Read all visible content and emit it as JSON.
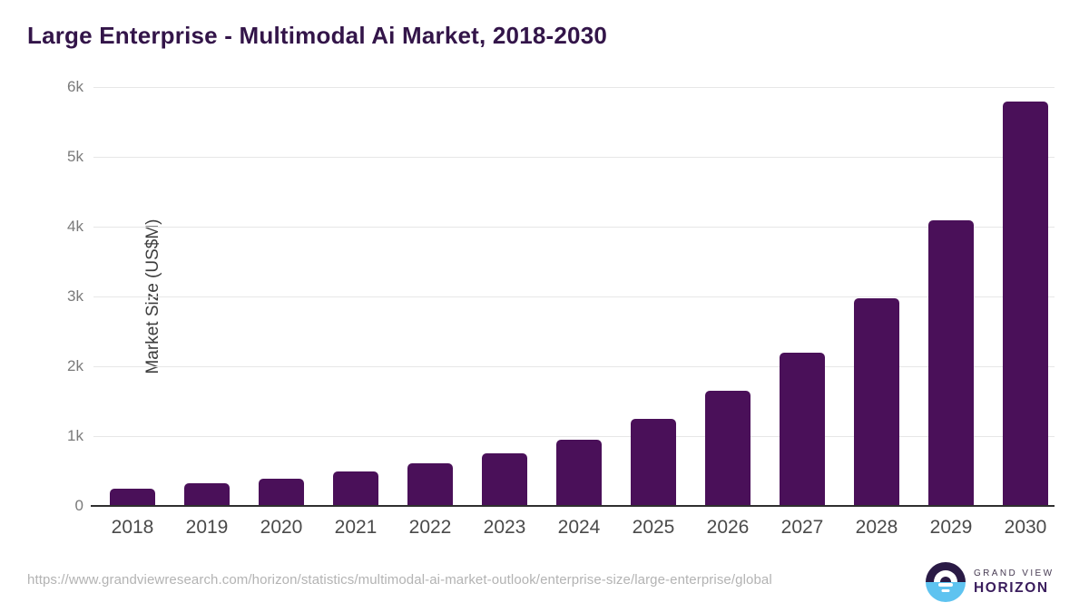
{
  "page": {
    "title": "Large Enterprise - Multimodal Ai Market, 2018-2030",
    "source_url": "https://www.grandviewresearch.com/horizon/statistics/multimodal-ai-market-outlook/enterprise-size/large-enterprise/global"
  },
  "chart_data": {
    "type": "bar",
    "title": "Large Enterprise - Multimodal Ai Market, 2018-2030",
    "categories": [
      "2018",
      "2019",
      "2020",
      "2021",
      "2022",
      "2023",
      "2024",
      "2025",
      "2026",
      "2027",
      "2028",
      "2029",
      "2030"
    ],
    "values": [
      250,
      325,
      385,
      490,
      610,
      750,
      955,
      1250,
      1650,
      2200,
      2980,
      4090,
      5790
    ],
    "xlabel": "",
    "ylabel": "Market Size (US$M)",
    "ylim": [
      0,
      6000
    ],
    "ytick_values": [
      0,
      1000,
      2000,
      3000,
      4000,
      5000,
      6000
    ],
    "ytick_labels": [
      "0",
      "1k",
      "2k",
      "3k",
      "4k",
      "5k",
      "6k"
    ],
    "grid": true,
    "legend": false,
    "bar_color": "#4a1059",
    "gridline_color": "#e7e7e7",
    "axis_line_color": "#2f2f2f"
  },
  "branding": {
    "logo_icon": "horizon-sunrise-icon",
    "logo_top_text": "GRAND VIEW",
    "logo_bottom_text": "HORIZON",
    "colors": {
      "title_purple": "#331549",
      "logo_dark": "#2a1a45",
      "logo_blue": "#5ec3f0"
    }
  }
}
